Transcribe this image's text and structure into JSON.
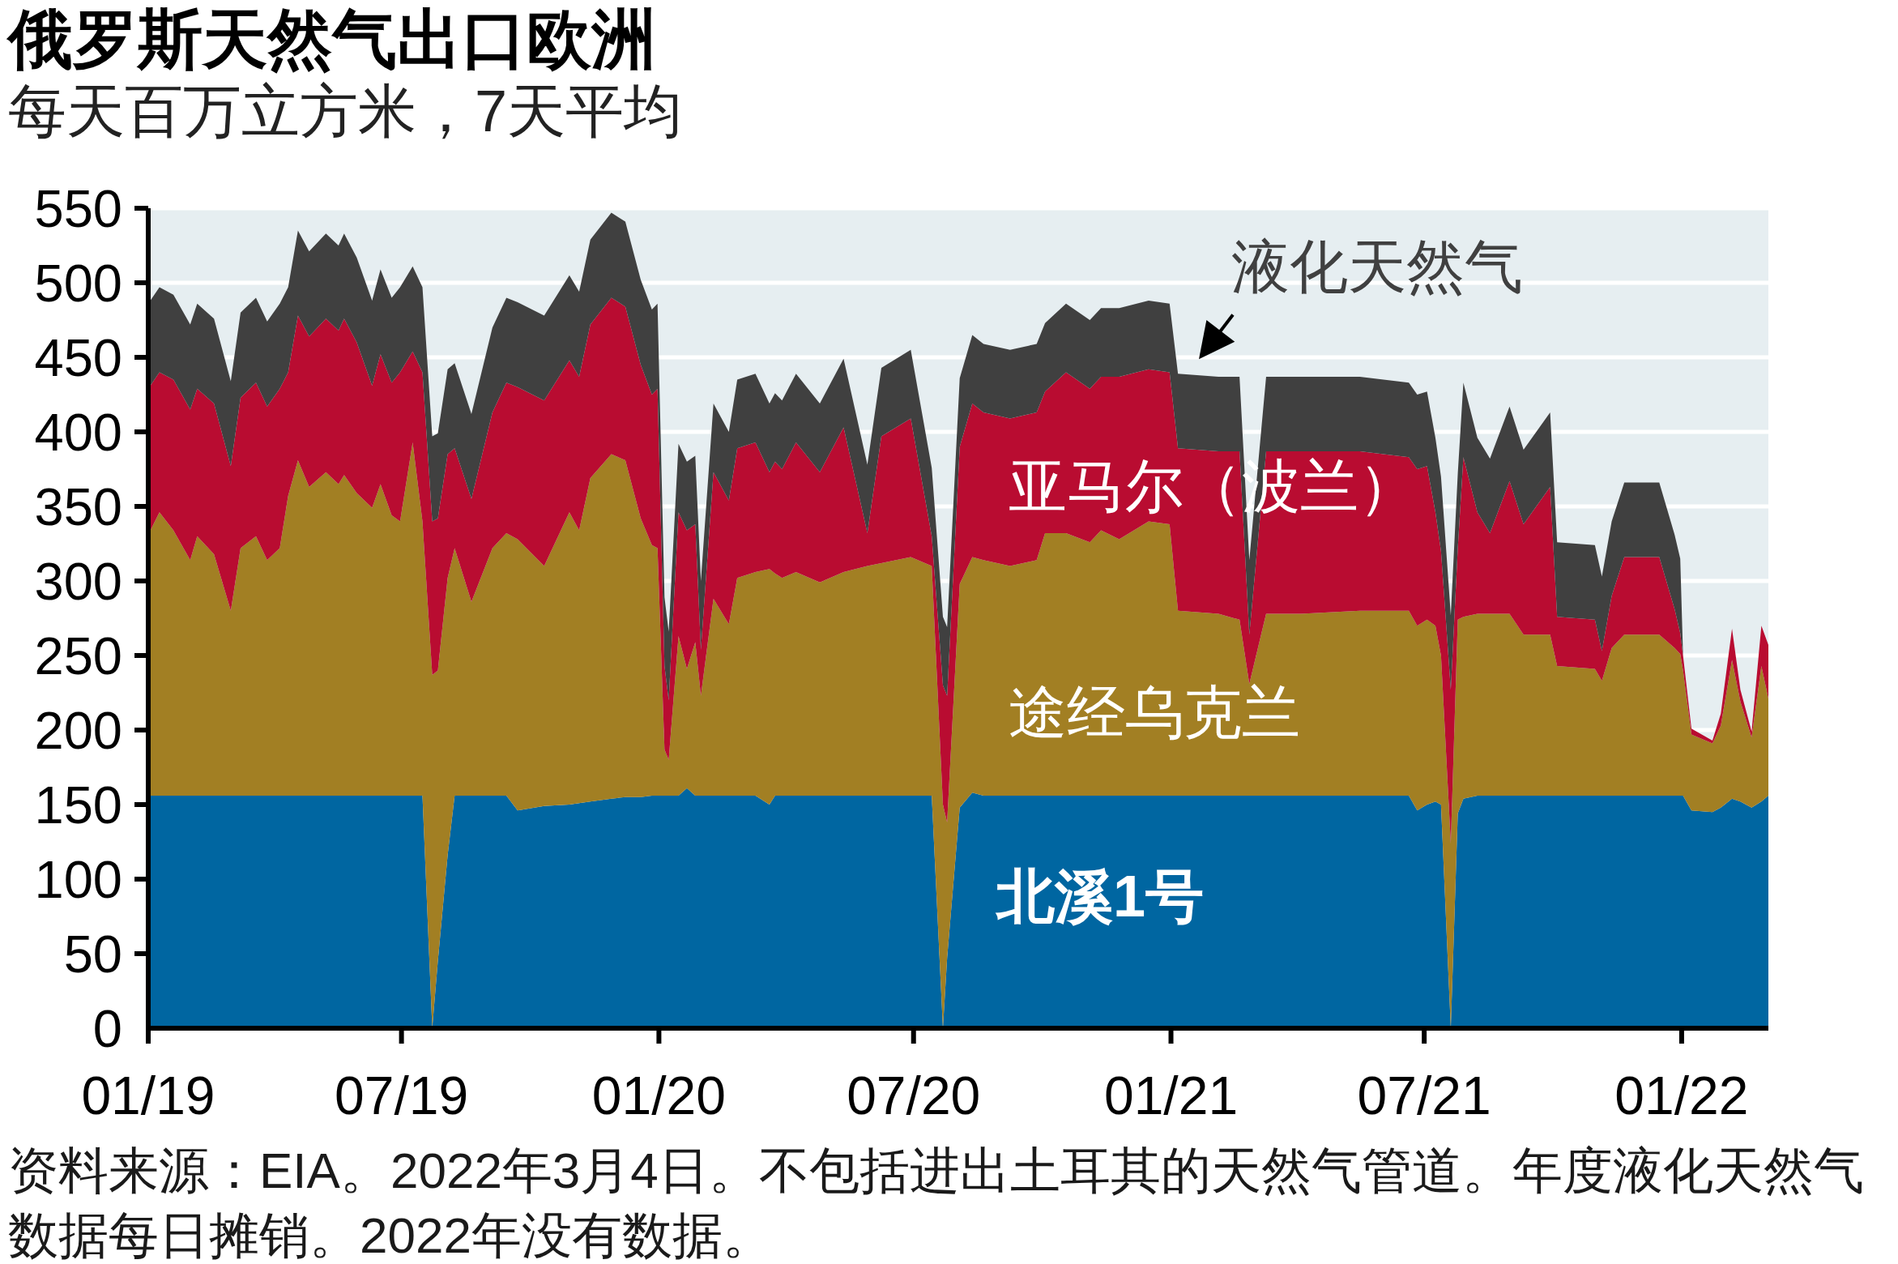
{
  "chart_data": {
    "type": "area",
    "stacked": true,
    "title": "俄罗斯天然气出口欧洲",
    "subtitle": "每天百万立方米，7天平均",
    "x": [
      "2019-01-01",
      "2019-01-09",
      "2019-01-19",
      "2019-01-31",
      "2019-02-05",
      "2019-02-17",
      "2019-03-01",
      "2019-03-08",
      "2019-03-19",
      "2019-03-27",
      "2019-04-05",
      "2019-04-11",
      "2019-04-18",
      "2019-04-26",
      "2019-05-08",
      "2019-05-17",
      "2019-05-21",
      "2019-05-30",
      "2019-06-10",
      "2019-06-16",
      "2019-06-24",
      "2019-06-30",
      "2019-07-09",
      "2019-07-16",
      "2019-07-23",
      "2019-07-27",
      "2019-08-03",
      "2019-08-08",
      "2019-08-20",
      "2019-09-04",
      "2019-09-14",
      "2019-09-22",
      "2019-10-11",
      "2019-10-29",
      "2019-11-05",
      "2019-11-13",
      "2019-11-28",
      "2019-12-08",
      "2019-12-19",
      "2019-12-27",
      "2019-12-31",
      "2020-01-05",
      "2020-01-08",
      "2020-01-15",
      "2020-01-21",
      "2020-01-27",
      "2020-01-31",
      "2020-02-09",
      "2020-02-20",
      "2020-02-26",
      "2020-03-10",
      "2020-03-20",
      "2020-03-24",
      "2020-03-29",
      "2020-04-08",
      "2020-04-25",
      "2020-05-12",
      "2020-05-29",
      "2020-06-08",
      "2020-06-29",
      "2020-07-14",
      "2020-07-22",
      "2020-07-25",
      "2020-08-03",
      "2020-08-12",
      "2020-08-20",
      "2020-09-08",
      "2020-09-27",
      "2020-10-03",
      "2020-10-18",
      "2020-11-04",
      "2020-11-12",
      "2020-11-25",
      "2020-12-16",
      "2020-12-31",
      "2021-01-06",
      "2021-02-04",
      "2021-02-19",
      "2021-02-26",
      "2021-03-10",
      "2021-04-04",
      "2021-05-16",
      "2021-06-20",
      "2021-06-26",
      "2021-07-03",
      "2021-07-09",
      "2021-07-13",
      "2021-07-20",
      "2021-07-25",
      "2021-07-29",
      "2021-08-08",
      "2021-08-17",
      "2021-08-31",
      "2021-09-10",
      "2021-09-29",
      "2021-10-04",
      "2021-10-31",
      "2021-11-05",
      "2021-11-12",
      "2021-11-21",
      "2021-12-16",
      "2021-12-27",
      "2021-12-31",
      "2022-01-02",
      "2022-01-08",
      "2022-01-23",
      "2022-01-29",
      "2022-02-06",
      "2022-02-12",
      "2022-02-20",
      "2022-02-27",
      "2022-03-04"
    ],
    "series": [
      {
        "name": "北溪1号",
        "color": "#0066a1",
        "values": [
          156,
          156,
          156,
          156,
          156,
          156,
          156,
          156,
          156,
          156,
          156,
          156,
          156,
          156,
          156,
          156,
          156,
          156,
          156,
          156,
          156,
          156,
          156,
          156,
          0,
          45,
          116,
          156,
          156,
          156,
          156,
          146,
          149,
          150,
          151,
          152,
          154,
          155,
          155,
          156,
          156,
          156,
          156,
          156,
          161,
          156,
          156,
          156,
          156,
          156,
          156,
          150,
          156,
          156,
          156,
          156,
          156,
          156,
          156,
          156,
          156,
          0,
          47,
          148,
          158,
          156,
          156,
          156,
          156,
          156,
          156,
          156,
          156,
          156,
          156,
          156,
          156,
          156,
          156,
          156,
          156,
          156,
          156,
          146,
          150,
          152,
          150,
          0,
          144,
          154,
          156,
          156,
          156,
          156,
          156,
          156,
          156,
          156,
          156,
          156,
          156,
          156,
          156,
          156,
          146,
          145,
          148,
          154,
          152,
          148,
          152,
          156
        ]
      },
      {
        "name": "途经乌克兰",
        "color": "#a27f23",
        "values": [
          175,
          190,
          178,
          158,
          174,
          162,
          124,
          166,
          174,
          158,
          166,
          201,
          225,
          207,
          217,
          209,
          215,
          203,
          193,
          209,
          188,
          184,
          237,
          184,
          237,
          195,
          186,
          166,
          130,
          166,
          176,
          182,
          161,
          196,
          183,
          217,
          231,
          226,
          187,
          168,
          166,
          31,
          24,
          107,
          80,
          103,
          67,
          132,
          115,
          146,
          150,
          158,
          149,
          146,
          150,
          143,
          150,
          154,
          156,
          160,
          154,
          150,
          91,
          150,
          158,
          158,
          154,
          158,
          176,
          176,
          170,
          178,
          172,
          184,
          182,
          124,
          122,
          118,
          75,
          122,
          122,
          124,
          124,
          124,
          124,
          118,
          100,
          124,
          130,
          122,
          122,
          122,
          122,
          108,
          108,
          87,
          85,
          77,
          99,
          108,
          108,
          99,
          95,
          84,
          51,
          46,
          55,
          93,
          67,
          47,
          91,
          65
        ]
      },
      {
        "name": "亚马尔（波兰）",
        "color": "#b90c31",
        "values": [
          98,
          94,
          101,
          101,
          99,
          101,
          97,
          101,
          103,
          103,
          107,
          83,
          97,
          101,
          103,
          103,
          105,
          101,
          82,
          87,
          89,
          100,
          61,
          100,
          103,
          102,
          83,
          67,
          69,
          91,
          101,
          102,
          111,
          102,
          103,
          103,
          105,
          103,
          103,
          101,
          107,
          56,
          40,
          83,
          93,
          79,
          31,
          85,
          83,
          87,
          87,
          65,
          75,
          73,
          87,
          74,
          97,
          22,
          85,
          93,
          20,
          80,
          85,
          92,
          103,
          99,
          99,
          99,
          95,
          108,
          103,
          103,
          109,
          102,
          102,
          109,
          109,
          113,
          33,
          109,
          109,
          107,
          103,
          105,
          103,
          76,
          70,
          103,
          48,
          107,
          68,
          54,
          89,
          74,
          99,
          33,
          33,
          20,
          35,
          52,
          52,
          26,
          14,
          10,
          4,
          2,
          8,
          21,
          8,
          4,
          27,
          36
        ]
      },
      {
        "name": "液化天然气",
        "color": "#404040",
        "values": [
          57,
          57,
          57,
          57,
          57,
          57,
          57,
          57,
          57,
          57,
          57,
          57,
          57,
          57,
          57,
          57,
          57,
          57,
          57,
          57,
          57,
          57,
          57,
          57,
          57,
          57,
          57,
          57,
          57,
          57,
          57,
          57,
          57,
          57,
          57,
          57,
          57,
          57,
          57,
          57,
          57,
          46,
          46,
          46,
          46,
          46,
          46,
          46,
          46,
          46,
          46,
          46,
          46,
          46,
          46,
          46,
          46,
          46,
          46,
          46,
          46,
          46,
          46,
          46,
          46,
          46,
          46,
          46,
          46,
          46,
          46,
          46,
          46,
          46,
          46,
          50,
          50,
          50,
          50,
          50,
          50,
          50,
          50,
          50,
          50,
          50,
          50,
          50,
          50,
          50,
          50,
          50,
          50,
          50,
          50,
          50,
          50,
          50,
          50,
          50,
          50,
          50,
          50,
          0,
          0,
          0,
          0,
          0,
          0,
          0,
          0,
          0
        ]
      }
    ],
    "ylim": [
      0,
      550
    ],
    "yticks": [
      0,
      50,
      100,
      150,
      200,
      250,
      300,
      350,
      400,
      450,
      500,
      550
    ],
    "xlim": [
      "2019-01-01",
      "2022-03-04"
    ],
    "xticks": [
      {
        "value": "2019-01-01",
        "label": "01/19"
      },
      {
        "value": "2019-07-01",
        "label": "07/19"
      },
      {
        "value": "2020-01-01",
        "label": "01/20"
      },
      {
        "value": "2020-07-01",
        "label": "07/20"
      },
      {
        "value": "2021-01-01",
        "label": "01/21"
      },
      {
        "value": "2021-07-01",
        "label": "07/21"
      },
      {
        "value": "2022-01-01",
        "label": "01/22"
      }
    ],
    "grid": "y",
    "annotations": [
      "资料来源：EIA。2022年3月4日。不包括进出土耳其的天然气管道。年度液化天然气数据每日摊销。2022年没有数据。"
    ]
  }
}
